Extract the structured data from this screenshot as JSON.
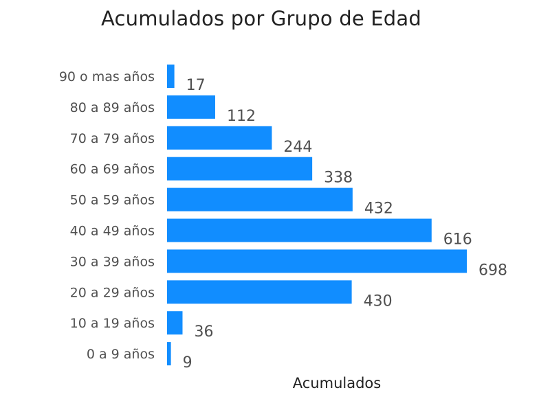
{
  "colors": {
    "bar": "#118DFF",
    "text": "#505050",
    "title": "#222222"
  },
  "chart_data": {
    "type": "bar",
    "orientation": "horizontal",
    "title": "Acumulados por Grupo de Edad",
    "xlabel": "Acumulados",
    "ylabel": "",
    "categories": [
      "90 o mas años",
      "80 a 89 años",
      "70 a 79 años",
      "60 a 69 años",
      "50 a 59 años",
      "40 a 49 años",
      "30 a 39 años",
      "20 a 29 años",
      "10 a 19 años",
      "0 a 9 años"
    ],
    "values": [
      17,
      112,
      244,
      338,
      432,
      616,
      698,
      430,
      36,
      9
    ],
    "xlim": [
      0,
      698
    ],
    "grid": false,
    "legend": "none",
    "data_labels": true
  }
}
